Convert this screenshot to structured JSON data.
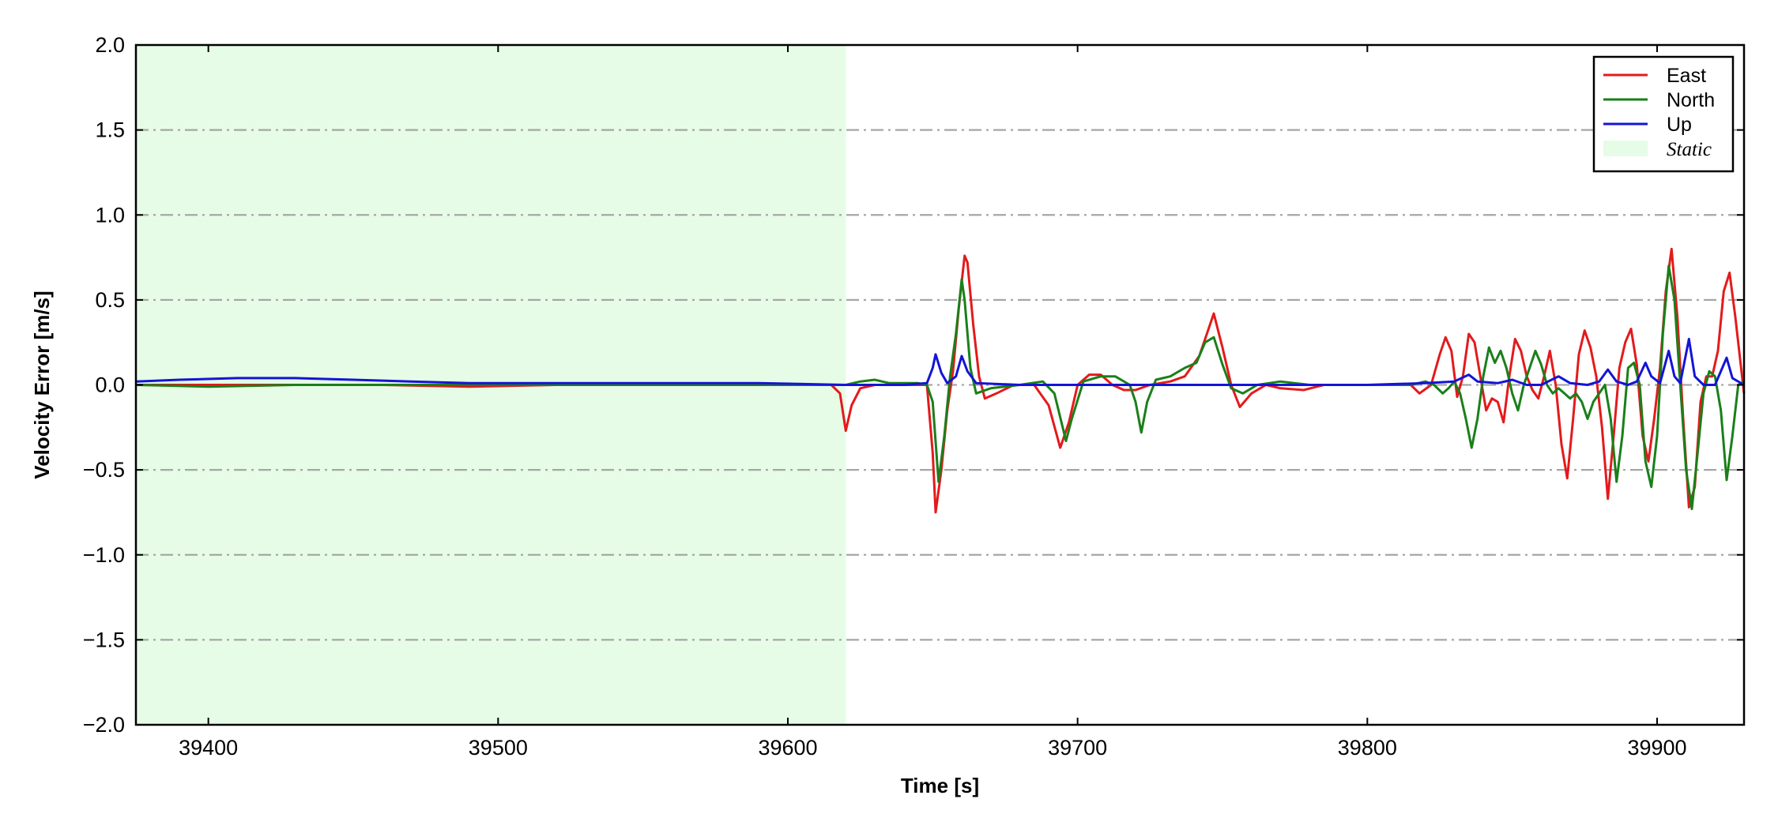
{
  "chart_data": {
    "type": "line",
    "title": "",
    "xlabel": "Time [s]",
    "ylabel": "Velocity Error [m/s]",
    "xlim": [
      39375,
      39930
    ],
    "ylim": [
      -2.0,
      2.0
    ],
    "x_ticks": [
      39400,
      39500,
      39600,
      39700,
      39800,
      39900
    ],
    "y_ticks": [
      -2.0,
      -1.5,
      -1.0,
      -0.5,
      0.0,
      0.5,
      1.0,
      1.5,
      2.0
    ],
    "x_tick_labels": [
      "39400",
      "39500",
      "39600",
      "39700",
      "39800",
      "39900"
    ],
    "y_tick_labels": [
      "−2.0",
      "−1.5",
      "−1.0",
      "−0.5",
      "0.0",
      "0.5",
      "1.0",
      "1.5",
      "2.0"
    ],
    "grid": "horizontal dash-dot",
    "legend_position": "top-right",
    "shaded_region": {
      "label": "Static",
      "x_range": [
        39375,
        39620
      ],
      "color": "#e6fce6"
    },
    "series": [
      {
        "name": "East",
        "color": "#e31a1c",
        "points": [
          [
            39375,
            0.0
          ],
          [
            39400,
            0.0
          ],
          [
            39430,
            0.0
          ],
          [
            39460,
            0.0
          ],
          [
            39490,
            -0.01
          ],
          [
            39520,
            0.0
          ],
          [
            39560,
            0.0
          ],
          [
            39600,
            0.0
          ],
          [
            39615,
            0.0
          ],
          [
            39618,
            -0.05
          ],
          [
            39620,
            -0.27
          ],
          [
            39622,
            -0.12
          ],
          [
            39625,
            -0.02
          ],
          [
            39630,
            0.0
          ],
          [
            39640,
            0.0
          ],
          [
            39648,
            0.0
          ],
          [
            39650,
            -0.4
          ],
          [
            39651,
            -0.75
          ],
          [
            39653,
            -0.5
          ],
          [
            39655,
            -0.15
          ],
          [
            39657,
            0.08
          ],
          [
            39659,
            0.45
          ],
          [
            39661,
            0.76
          ],
          [
            39662,
            0.72
          ],
          [
            39664,
            0.35
          ],
          [
            39666,
            0.05
          ],
          [
            39668,
            -0.08
          ],
          [
            39672,
            -0.05
          ],
          [
            39678,
            0.0
          ],
          [
            39685,
            0.0
          ],
          [
            39690,
            -0.12
          ],
          [
            39694,
            -0.37
          ],
          [
            39697,
            -0.22
          ],
          [
            39700,
            0.0
          ],
          [
            39704,
            0.06
          ],
          [
            39708,
            0.06
          ],
          [
            39712,
            0.0
          ],
          [
            39716,
            -0.03
          ],
          [
            39720,
            -0.03
          ],
          [
            39725,
            0.0
          ],
          [
            39732,
            0.02
          ],
          [
            39737,
            0.05
          ],
          [
            39742,
            0.17
          ],
          [
            39747,
            0.42
          ],
          [
            39750,
            0.22
          ],
          [
            39753,
            0.0
          ],
          [
            39756,
            -0.13
          ],
          [
            39760,
            -0.05
          ],
          [
            39765,
            0.0
          ],
          [
            39770,
            -0.02
          ],
          [
            39778,
            -0.03
          ],
          [
            39785,
            0.0
          ],
          [
            39790,
            0.0
          ],
          [
            39800,
            0.0
          ],
          [
            39810,
            0.0
          ],
          [
            39815,
            0.0
          ],
          [
            39818,
            -0.05
          ],
          [
            39822,
            0.0
          ],
          [
            39825,
            0.18
          ],
          [
            39827,
            0.28
          ],
          [
            39829,
            0.2
          ],
          [
            39831,
            -0.07
          ],
          [
            39833,
            0.05
          ],
          [
            39835,
            0.3
          ],
          [
            39837,
            0.25
          ],
          [
            39839,
            0.05
          ],
          [
            39841,
            -0.15
          ],
          [
            39843,
            -0.08
          ],
          [
            39845,
            -0.1
          ],
          [
            39847,
            -0.22
          ],
          [
            39849,
            0.05
          ],
          [
            39851,
            0.27
          ],
          [
            39853,
            0.2
          ],
          [
            39855,
            0.05
          ],
          [
            39857,
            -0.03
          ],
          [
            39859,
            -0.08
          ],
          [
            39861,
            0.05
          ],
          [
            39863,
            0.2
          ],
          [
            39865,
            0.0
          ],
          [
            39867,
            -0.35
          ],
          [
            39869,
            -0.55
          ],
          [
            39871,
            -0.2
          ],
          [
            39873,
            0.18
          ],
          [
            39875,
            0.32
          ],
          [
            39877,
            0.22
          ],
          [
            39879,
            0.05
          ],
          [
            39881,
            -0.25
          ],
          [
            39883,
            -0.67
          ],
          [
            39885,
            -0.3
          ],
          [
            39887,
            0.1
          ],
          [
            39889,
            0.25
          ],
          [
            39891,
            0.33
          ],
          [
            39893,
            0.12
          ],
          [
            39895,
            -0.3
          ],
          [
            39897,
            -0.45
          ],
          [
            39899,
            -0.2
          ],
          [
            39901,
            0.1
          ],
          [
            39903,
            0.55
          ],
          [
            39905,
            0.8
          ],
          [
            39907,
            0.4
          ],
          [
            39909,
            -0.2
          ],
          [
            39911,
            -0.72
          ],
          [
            39913,
            -0.6
          ],
          [
            39915,
            -0.1
          ],
          [
            39917,
            0.05
          ],
          [
            39919,
            0.05
          ],
          [
            39921,
            0.2
          ],
          [
            39923,
            0.55
          ],
          [
            39925,
            0.66
          ],
          [
            39927,
            0.4
          ],
          [
            39929,
            0.1
          ],
          [
            39930,
            -0.05
          ]
        ]
      },
      {
        "name": "North",
        "color": "#1a7f1a",
        "points": [
          [
            39375,
            0.0
          ],
          [
            39400,
            -0.01
          ],
          [
            39430,
            0.0
          ],
          [
            39460,
            0.0
          ],
          [
            39490,
            0.0
          ],
          [
            39520,
            0.0
          ],
          [
            39560,
            0.0
          ],
          [
            39600,
            0.0
          ],
          [
            39620,
            0.0
          ],
          [
            39625,
            0.02
          ],
          [
            39630,
            0.03
          ],
          [
            39635,
            0.01
          ],
          [
            39645,
            0.01
          ],
          [
            39648,
            0.0
          ],
          [
            39650,
            -0.1
          ],
          [
            39652,
            -0.57
          ],
          [
            39654,
            -0.3
          ],
          [
            39656,
            0.05
          ],
          [
            39658,
            0.3
          ],
          [
            39660,
            0.62
          ],
          [
            39661,
            0.5
          ],
          [
            39663,
            0.1
          ],
          [
            39665,
            -0.05
          ],
          [
            39670,
            -0.02
          ],
          [
            39680,
            0.0
          ],
          [
            39688,
            0.02
          ],
          [
            39692,
            -0.05
          ],
          [
            39696,
            -0.33
          ],
          [
            39698,
            -0.2
          ],
          [
            39702,
            0.02
          ],
          [
            39708,
            0.05
          ],
          [
            39713,
            0.05
          ],
          [
            39718,
            0.0
          ],
          [
            39720,
            -0.1
          ],
          [
            39722,
            -0.28
          ],
          [
            39724,
            -0.1
          ],
          [
            39727,
            0.03
          ],
          [
            39732,
            0.05
          ],
          [
            39737,
            0.1
          ],
          [
            39741,
            0.13
          ],
          [
            39744,
            0.25
          ],
          [
            39747,
            0.28
          ],
          [
            39750,
            0.12
          ],
          [
            39753,
            -0.02
          ],
          [
            39757,
            -0.05
          ],
          [
            39762,
            0.0
          ],
          [
            39770,
            0.02
          ],
          [
            39780,
            0.0
          ],
          [
            39790,
            0.0
          ],
          [
            39800,
            0.0
          ],
          [
            39815,
            0.0
          ],
          [
            39820,
            0.02
          ],
          [
            39823,
            0.0
          ],
          [
            39826,
            -0.05
          ],
          [
            39828,
            -0.02
          ],
          [
            39830,
            0.02
          ],
          [
            39832,
            -0.05
          ],
          [
            39834,
            -0.2
          ],
          [
            39836,
            -0.37
          ],
          [
            39838,
            -0.2
          ],
          [
            39840,
            0.05
          ],
          [
            39842,
            0.22
          ],
          [
            39844,
            0.13
          ],
          [
            39846,
            0.2
          ],
          [
            39848,
            0.1
          ],
          [
            39850,
            -0.05
          ],
          [
            39852,
            -0.15
          ],
          [
            39854,
            0.0
          ],
          [
            39856,
            0.1
          ],
          [
            39858,
            0.2
          ],
          [
            39860,
            0.12
          ],
          [
            39862,
            0.0
          ],
          [
            39864,
            -0.05
          ],
          [
            39866,
            -0.02
          ],
          [
            39868,
            -0.05
          ],
          [
            39870,
            -0.08
          ],
          [
            39872,
            -0.05
          ],
          [
            39874,
            -0.1
          ],
          [
            39876,
            -0.2
          ],
          [
            39878,
            -0.1
          ],
          [
            39880,
            -0.05
          ],
          [
            39882,
            0.0
          ],
          [
            39884,
            -0.2
          ],
          [
            39886,
            -0.57
          ],
          [
            39888,
            -0.3
          ],
          [
            39890,
            0.1
          ],
          [
            39892,
            0.13
          ],
          [
            39894,
            0.0
          ],
          [
            39896,
            -0.45
          ],
          [
            39898,
            -0.6
          ],
          [
            39900,
            -0.3
          ],
          [
            39902,
            0.3
          ],
          [
            39904,
            0.7
          ],
          [
            39906,
            0.5
          ],
          [
            39908,
            0.0
          ],
          [
            39910,
            -0.5
          ],
          [
            39912,
            -0.73
          ],
          [
            39914,
            -0.4
          ],
          [
            39916,
            -0.05
          ],
          [
            39918,
            0.08
          ],
          [
            39920,
            0.05
          ],
          [
            39922,
            -0.15
          ],
          [
            39924,
            -0.56
          ],
          [
            39926,
            -0.3
          ],
          [
            39928,
            0.0
          ],
          [
            39930,
            0.02
          ]
        ]
      },
      {
        "name": "Up",
        "color": "#1414d6",
        "points": [
          [
            39375,
            0.02
          ],
          [
            39390,
            0.03
          ],
          [
            39410,
            0.04
          ],
          [
            39430,
            0.04
          ],
          [
            39450,
            0.03
          ],
          [
            39470,
            0.02
          ],
          [
            39490,
            0.01
          ],
          [
            39510,
            0.01
          ],
          [
            39530,
            0.01
          ],
          [
            39560,
            0.01
          ],
          [
            39590,
            0.01
          ],
          [
            39620,
            0.0
          ],
          [
            39640,
            0.0
          ],
          [
            39648,
            0.01
          ],
          [
            39650,
            0.1
          ],
          [
            39651,
            0.18
          ],
          [
            39653,
            0.07
          ],
          [
            39655,
            0.01
          ],
          [
            39658,
            0.05
          ],
          [
            39660,
            0.17
          ],
          [
            39662,
            0.08
          ],
          [
            39665,
            0.01
          ],
          [
            39680,
            0.0
          ],
          [
            39700,
            0.0
          ],
          [
            39730,
            0.0
          ],
          [
            39760,
            0.0
          ],
          [
            39800,
            0.0
          ],
          [
            39820,
            0.01
          ],
          [
            39830,
            0.02
          ],
          [
            39835,
            0.06
          ],
          [
            39838,
            0.02
          ],
          [
            39845,
            0.01
          ],
          [
            39850,
            0.03
          ],
          [
            39855,
            0.0
          ],
          [
            39860,
            0.0
          ],
          [
            39866,
            0.05
          ],
          [
            39870,
            0.01
          ],
          [
            39876,
            0.0
          ],
          [
            39880,
            0.02
          ],
          [
            39883,
            0.09
          ],
          [
            39886,
            0.02
          ],
          [
            39890,
            0.0
          ],
          [
            39893,
            0.02
          ],
          [
            39896,
            0.13
          ],
          [
            39898,
            0.05
          ],
          [
            39901,
            0.01
          ],
          [
            39904,
            0.2
          ],
          [
            39906,
            0.05
          ],
          [
            39908,
            0.01
          ],
          [
            39911,
            0.27
          ],
          [
            39913,
            0.05
          ],
          [
            39916,
            0.0
          ],
          [
            39920,
            0.0
          ],
          [
            39924,
            0.16
          ],
          [
            39926,
            0.04
          ],
          [
            39930,
            0.0
          ]
        ]
      }
    ]
  }
}
